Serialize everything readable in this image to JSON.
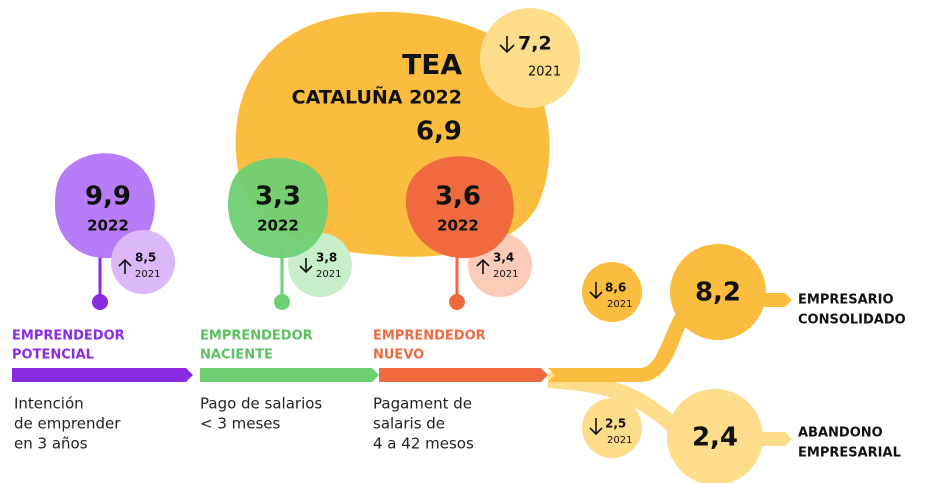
{
  "tea": {
    "title": "TEA",
    "subtitle": "CATALUÑA 2022",
    "value": "6,9",
    "previous": {
      "value": "7,2",
      "year": "2021"
    }
  },
  "stages": [
    {
      "label_lines": [
        "EMPRENDEDOR",
        "POTENCIAL"
      ],
      "value": "9,9",
      "year": "2022",
      "previous": {
        "value": "8,5",
        "year": "2021"
      },
      "description_lines": [
        "Intención",
        "de emprender",
        "en 3 años"
      ]
    },
    {
      "label_lines": [
        "EMPRENDEDOR",
        "NACIENTE"
      ],
      "value": "3,3",
      "year": "2022",
      "previous": {
        "value": "3,8",
        "year": "2021"
      },
      "description_lines": [
        "Pago de salarios",
        "< 3 meses"
      ]
    },
    {
      "label_lines": [
        "EMPRENDEDOR",
        "NUEVO"
      ],
      "value": "3,6",
      "year": "2022",
      "previous": {
        "value": "3,4",
        "year": "2021"
      },
      "description_lines": [
        "Pagament de",
        "salaris de",
        "4 a 42 mesos"
      ]
    }
  ],
  "outcomes": [
    {
      "label_lines": [
        "EMPRESARIO",
        "CONSOLIDADO"
      ],
      "value": "8,2",
      "previous": {
        "value": "8,6",
        "year": "2021"
      }
    },
    {
      "label_lines": [
        "ABANDONO",
        "EMPRESARIAL"
      ],
      "value": "2,4",
      "previous": {
        "value": "2,5",
        "year": "2021"
      }
    }
  ]
}
